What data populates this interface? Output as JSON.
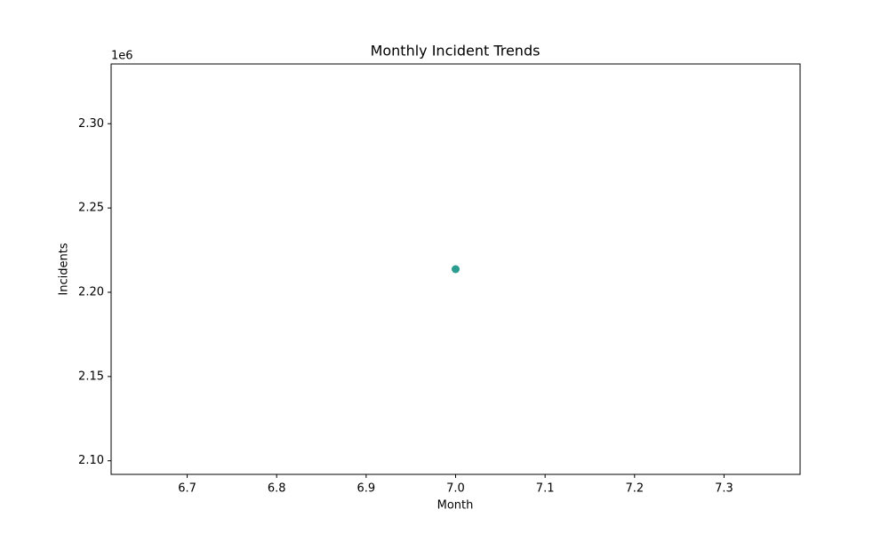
{
  "chart_data": {
    "type": "scatter",
    "title": "Monthly Incident Trends",
    "x_label": "Month",
    "y_label": "Incidents",
    "y_offset_label": "1e6",
    "x": [
      7
    ],
    "values": [
      2213700
    ],
    "color": "#2a9d8f",
    "xlim": [
      6.615,
      7.385
    ],
    "xticks": [
      6.7,
      6.8,
      6.9,
      {
        "value": 7,
        "label": "7.0"
      },
      7.1,
      7.2,
      7.3
    ],
    "ylim": [
      2091950,
      2335450
    ],
    "yticks": [
      {
        "value": 2100000,
        "label": "2.10"
      },
      {
        "value": 2150000,
        "label": "2.15"
      },
      {
        "value": 2200000,
        "label": "2.20"
      },
      {
        "value": 2250000,
        "label": "2.25"
      },
      {
        "value": 2300000,
        "label": "2.30"
      }
    ],
    "grid": false
  }
}
